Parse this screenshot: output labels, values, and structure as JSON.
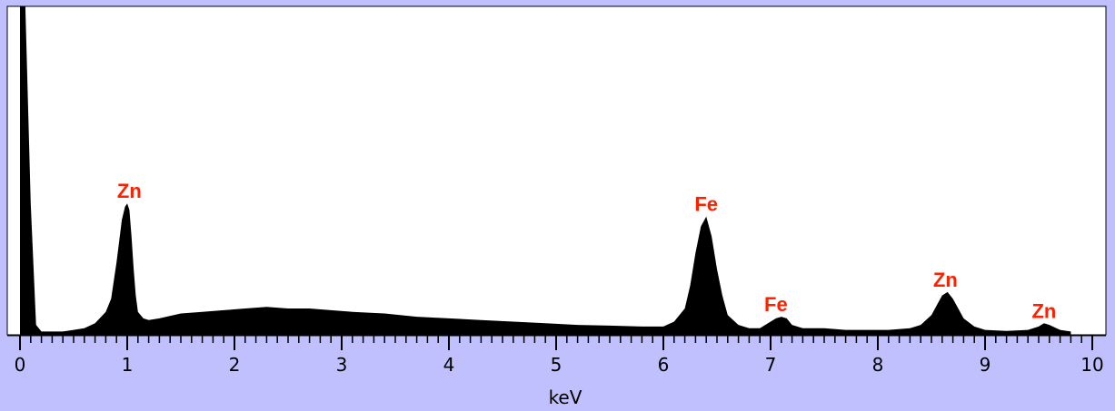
{
  "chart_data": {
    "type": "area",
    "title": "",
    "xlabel": "keV",
    "ylabel": "",
    "xlim": [
      0,
      10
    ],
    "ylim": [
      0,
      100
    ],
    "grid": false,
    "x_ticks": [
      "0",
      "1",
      "2",
      "3",
      "4",
      "5",
      "6",
      "7",
      "8",
      "9",
      "10"
    ],
    "series": [
      {
        "x": [
          0.0,
          0.05,
          0.1,
          0.15,
          0.2,
          0.25,
          0.3,
          0.4,
          0.5,
          0.6,
          0.7,
          0.8,
          0.85,
          0.9,
          0.95,
          0.98,
          1.0,
          1.02,
          1.04,
          1.06,
          1.08,
          1.1,
          1.15,
          1.2,
          1.3,
          1.5,
          1.7,
          1.9,
          2.1,
          2.3,
          2.5,
          2.7,
          2.9,
          3.1,
          3.4,
          3.7,
          4.0,
          4.3,
          4.6,
          4.9,
          5.2,
          5.5,
          5.8,
          6.0,
          6.1,
          6.2,
          6.25,
          6.3,
          6.35,
          6.4,
          6.45,
          6.5,
          6.55,
          6.6,
          6.7,
          6.8,
          6.9,
          7.0,
          7.05,
          7.1,
          7.15,
          7.2,
          7.3,
          7.5,
          7.7,
          7.9,
          8.1,
          8.3,
          8.4,
          8.5,
          8.55,
          8.6,
          8.65,
          8.7,
          8.75,
          8.8,
          8.9,
          9.0,
          9.2,
          9.4,
          9.5,
          9.55,
          9.6,
          9.7,
          9.8
        ],
        "y": [
          100,
          100,
          40,
          3,
          1,
          1,
          1,
          1,
          1.5,
          2,
          3.5,
          7,
          11,
          22,
          35,
          39,
          40,
          38,
          30,
          20,
          12,
          7,
          5,
          4.5,
          5,
          6.5,
          7,
          7.5,
          8,
          8.5,
          8,
          8,
          7.5,
          7,
          6.5,
          5.5,
          5,
          4.5,
          4,
          3.5,
          3,
          2.8,
          2.5,
          2.5,
          4,
          8,
          15,
          25,
          33,
          36,
          30,
          20,
          12,
          6,
          3,
          2,
          2,
          4,
          5,
          5.5,
          5,
          3,
          2,
          2,
          1.5,
          1.5,
          1.5,
          2,
          3,
          6,
          9,
          12,
          13,
          11,
          8,
          5,
          2.5,
          1.5,
          1.2,
          1.5,
          2.5,
          3.5,
          3,
          1.5,
          1
        ]
      }
    ],
    "peak_labels": [
      {
        "text": "Zn",
        "x": 1.02,
        "y": 40
      },
      {
        "text": "Fe",
        "x": 6.4,
        "y": 36
      },
      {
        "text": "Fe",
        "x": 7.05,
        "y": 5.5
      },
      {
        "text": "Zn",
        "x": 8.63,
        "y": 13
      },
      {
        "text": "Zn",
        "x": 9.55,
        "y": 3.5
      }
    ]
  },
  "colors": {
    "background": "#c0c0ff",
    "plot_area": "#ffffff",
    "spectrum": "#000000",
    "peak_label": "#ff2000"
  }
}
